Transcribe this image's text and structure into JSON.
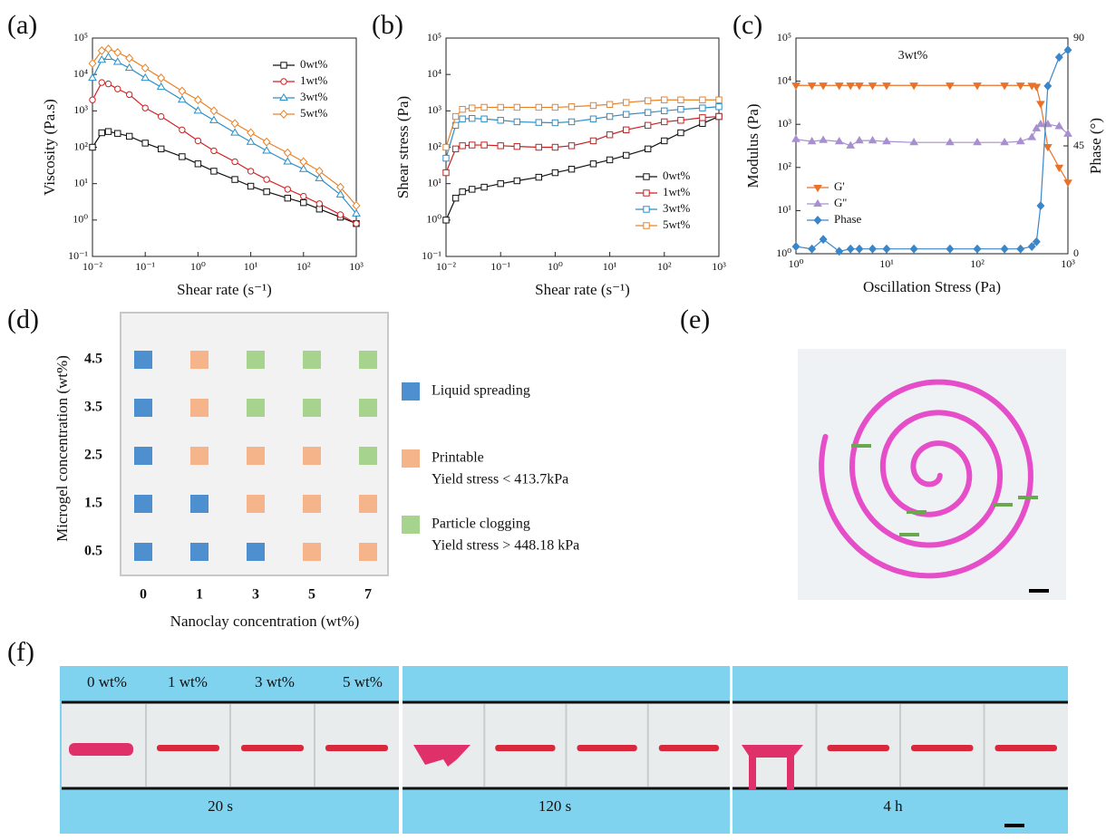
{
  "chart_data": [
    {
      "type": "line",
      "label": "(a)",
      "xlabel": "Shear rate (s⁻¹)",
      "ylabel": "Viscosity (Pa.s)",
      "xlog": true,
      "ylog": true,
      "legend": "upper right",
      "x": [
        0.01,
        0.015,
        0.02,
        0.03,
        0.05,
        0.1,
        0.2,
        0.5,
        1,
        2,
        5,
        10,
        20,
        50,
        100,
        200,
        500,
        1000
      ],
      "xlim": [
        0.01,
        1000
      ],
      "ylim": [
        0.1,
        100000
      ],
      "xticks": [
        {
          "value": 0.01,
          "label": "10⁻²"
        },
        {
          "value": 0.1,
          "label": "10⁻¹"
        },
        {
          "value": 1,
          "label": "10⁰"
        },
        {
          "value": 10,
          "label": "10¹"
        },
        {
          "value": 100,
          "label": "10²"
        },
        {
          "value": 1000,
          "label": "10³"
        }
      ],
      "yticks": [
        {
          "value": 0.1,
          "label": "10⁻¹"
        },
        {
          "value": 1,
          "label": "10⁰"
        },
        {
          "value": 10,
          "label": "10¹"
        },
        {
          "value": 100,
          "label": "10²"
        },
        {
          "value": 1000,
          "label": "10³"
        },
        {
          "value": 10000,
          "label": "10⁴"
        },
        {
          "value": 100000,
          "label": "10⁵"
        }
      ],
      "series": [
        {
          "name": "0wt%",
          "color": "#111111",
          "marker": "square",
          "values": [
            100,
            250,
            270,
            240,
            200,
            130,
            90,
            55,
            35,
            22,
            13,
            8.5,
            6,
            4,
            3,
            2,
            1.2,
            0.8
          ]
        },
        {
          "name": "1wt%",
          "color": "#d42020",
          "marker": "circle",
          "values": [
            2000,
            6000,
            5500,
            4000,
            2800,
            1200,
            700,
            300,
            150,
            80,
            40,
            22,
            13,
            7,
            4.5,
            2.8,
            1.4,
            0.8
          ]
        },
        {
          "name": "3wt%",
          "color": "#2a8fc8",
          "marker": "triangle",
          "values": [
            8000,
            25000,
            30000,
            22000,
            15000,
            8000,
            4500,
            2000,
            1000,
            550,
            250,
            140,
            80,
            40,
            25,
            14,
            5,
            1.5
          ]
        },
        {
          "name": "5wt%",
          "color": "#e8822a",
          "marker": "diamond",
          "values": [
            20000,
            45000,
            50000,
            40000,
            28000,
            15000,
            8000,
            3500,
            2000,
            1000,
            450,
            250,
            140,
            70,
            40,
            22,
            8,
            2.5
          ]
        }
      ]
    },
    {
      "type": "line",
      "label": "(b)",
      "xlabel": "Shear rate (s⁻¹)",
      "ylabel": "Shear stress (Pa)",
      "xlog": true,
      "ylog": true,
      "legend": "lower right",
      "x": [
        0.01,
        0.015,
        0.02,
        0.03,
        0.05,
        0.1,
        0.2,
        0.5,
        1,
        2,
        5,
        10,
        20,
        50,
        100,
        200,
        500,
        1000
      ],
      "xlim": [
        0.01,
        1000
      ],
      "ylim": [
        0.1,
        100000
      ],
      "xticks": [
        {
          "value": 0.01,
          "label": "10⁻²"
        },
        {
          "value": 0.1,
          "label": "10⁻¹"
        },
        {
          "value": 1,
          "label": "10⁰"
        },
        {
          "value": 10,
          "label": "10¹"
        },
        {
          "value": 100,
          "label": "10²"
        },
        {
          "value": 1000,
          "label": "10³"
        }
      ],
      "yticks": [
        {
          "value": 0.1,
          "label": "10⁻¹"
        },
        {
          "value": 1,
          "label": "10⁰"
        },
        {
          "value": 10,
          "label": "10¹"
        },
        {
          "value": 100,
          "label": "10²"
        },
        {
          "value": 1000,
          "label": "10³"
        },
        {
          "value": 10000,
          "label": "10⁴"
        },
        {
          "value": 100000,
          "label": "10⁵"
        }
      ],
      "series": [
        {
          "name": "0wt%",
          "color": "#111111",
          "marker": "square",
          "values": [
            1,
            4,
            6,
            7,
            8,
            10,
            12,
            15,
            20,
            25,
            35,
            45,
            60,
            90,
            150,
            250,
            450,
            700
          ]
        },
        {
          "name": "1wt%",
          "color": "#c8201e",
          "marker": "square",
          "values": [
            20,
            90,
            110,
            115,
            115,
            110,
            105,
            100,
            100,
            110,
            150,
            220,
            300,
            400,
            500,
            550,
            650,
            700
          ]
        },
        {
          "name": "3wt%",
          "color": "#2a8fc8",
          "marker": "square",
          "values": [
            50,
            400,
            600,
            620,
            600,
            550,
            500,
            480,
            470,
            500,
            600,
            700,
            800,
            900,
            1000,
            1100,
            1200,
            1300
          ]
        },
        {
          "name": "5wt%",
          "color": "#e8822a",
          "marker": "square",
          "values": [
            100,
            700,
            1100,
            1200,
            1250,
            1250,
            1250,
            1250,
            1250,
            1300,
            1400,
            1500,
            1700,
            1900,
            2000,
            2000,
            2000,
            2000
          ]
        }
      ]
    },
    {
      "type": "line",
      "label": "(c)",
      "xlabel": "Oscillation Stress (Pa)",
      "ylabel": "Modulus (Pa)",
      "y2label": "Phase (°)",
      "annotation": "3wt%",
      "xlog": true,
      "ylog": true,
      "legend": "center left",
      "x": [
        1,
        1.5,
        2,
        3,
        4,
        5,
        7,
        10,
        20,
        50,
        100,
        200,
        300,
        400,
        450,
        500,
        600,
        800,
        1000
      ],
      "xlim": [
        1,
        1000
      ],
      "ylim": [
        1,
        100000
      ],
      "y2lim": [
        0,
        90
      ],
      "xticks": [
        {
          "value": 1,
          "label": "10⁰"
        },
        {
          "value": 10,
          "label": "10¹"
        },
        {
          "value": 100,
          "label": "10²"
        },
        {
          "value": 1000,
          "label": "10³"
        }
      ],
      "yticks": [
        {
          "value": 1,
          "label": "10⁰"
        },
        {
          "value": 10,
          "label": "10¹"
        },
        {
          "value": 100,
          "label": "10²"
        },
        {
          "value": 1000,
          "label": "10³"
        },
        {
          "value": 10000,
          "label": "10⁴"
        },
        {
          "value": 100000,
          "label": "10⁵"
        }
      ],
      "y2ticks": [
        0,
        45,
        90
      ],
      "series": [
        {
          "name": "G'",
          "color": "#e8722a",
          "marker": "triangle-down",
          "values": [
            8000,
            8000,
            8000,
            8000,
            8000,
            8000,
            8000,
            8000,
            8000,
            8000,
            8000,
            8000,
            8000,
            7900,
            7500,
            3000,
            300,
            100,
            45
          ]
        },
        {
          "name": "G''",
          "color": "#a78fd0",
          "marker": "triangle",
          "values": [
            450,
            400,
            430,
            400,
            320,
            420,
            420,
            400,
            380,
            380,
            380,
            380,
            400,
            500,
            800,
            1000,
            1000,
            900,
            600
          ]
        },
        {
          "name": "Phase",
          "color": "#3a86c8",
          "marker": "diamond",
          "axis": "y2",
          "values": [
            3,
            2,
            6,
            1,
            2,
            2,
            2,
            2,
            2,
            2,
            2,
            2,
            2,
            3,
            5,
            20,
            70,
            82,
            85
          ]
        }
      ]
    }
  ],
  "panel_d": {
    "label": "(d)",
    "ylabel": "Microgel concentration (wt%)",
    "xlabel": "Nanoclay concentration (wt%)",
    "rows": [
      "4.5",
      "3.5",
      "2.5",
      "1.5",
      "0.5"
    ],
    "columns": [
      "0",
      "1",
      "3",
      "5",
      "7"
    ],
    "cells": [
      [
        0,
        1,
        2,
        2,
        2
      ],
      [
        0,
        1,
        2,
        2,
        2
      ],
      [
        0,
        1,
        1,
        1,
        2
      ],
      [
        0,
        0,
        1,
        1,
        1
      ],
      [
        0,
        0,
        0,
        1,
        1
      ]
    ],
    "legend": [
      {
        "color": "#4e8fd0",
        "lines": [
          "Liquid spreading"
        ]
      },
      {
        "color": "#f5b48a",
        "lines": [
          "Printable",
          "Yield stress < 413.7kPa"
        ]
      },
      {
        "color": "#a6d48f",
        "lines": [
          "Particle clogging",
          "Yield stress > 448.18 kPa"
        ]
      }
    ]
  },
  "panel_e": {
    "label": "(e)"
  },
  "panel_f": {
    "label": "(f)",
    "concentrations": [
      "0 wt%",
      "1 wt%",
      "3 wt%",
      "5 wt%"
    ],
    "times": [
      "20 s",
      "120 s",
      "4 h"
    ]
  }
}
